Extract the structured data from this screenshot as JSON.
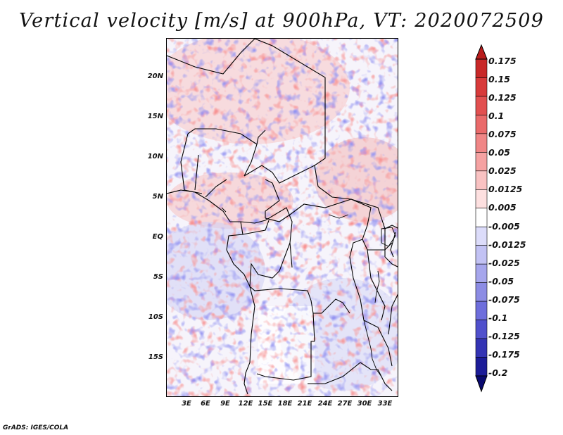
{
  "title": "Vertical velocity [m/s] at 900hPa, VT: 2020072509",
  "credit": "GrADS: IGES/COLA",
  "lat_labels": [
    "20N",
    "15N",
    "10N",
    "5N",
    "EQ",
    "5S",
    "10S",
    "15S"
  ],
  "lon_labels": [
    "3E",
    "6E",
    "9E",
    "12E",
    "15E",
    "18E",
    "21E",
    "24E",
    "27E",
    "30E",
    "33E"
  ],
  "colorbar": {
    "labels": [
      "0.175",
      "0.15",
      "0.125",
      "0.1",
      "0.075",
      "0.05",
      "0.025",
      "0.0125",
      "0.005",
      "-0.005",
      "-0.0125",
      "-0.025",
      "-0.05",
      "-0.075",
      "-0.1",
      "-0.125",
      "-0.175",
      "-0.2"
    ],
    "colors": [
      "#b81c1c",
      "#c82828",
      "#d83a3a",
      "#e25050",
      "#ea6a6a",
      "#f08686",
      "#f5a2a2",
      "#f9c2c2",
      "#fde0e0",
      "#ffffff",
      "#dcdcfa",
      "#c2c2f4",
      "#a6a6ec",
      "#8c8ce4",
      "#6e6edc",
      "#5050cc",
      "#3434b4",
      "#1c1c98",
      "#0a0a70"
    ]
  },
  "colors": {
    "positive": "#e04040",
    "negative": "#4040d8",
    "border": "#000000"
  }
}
